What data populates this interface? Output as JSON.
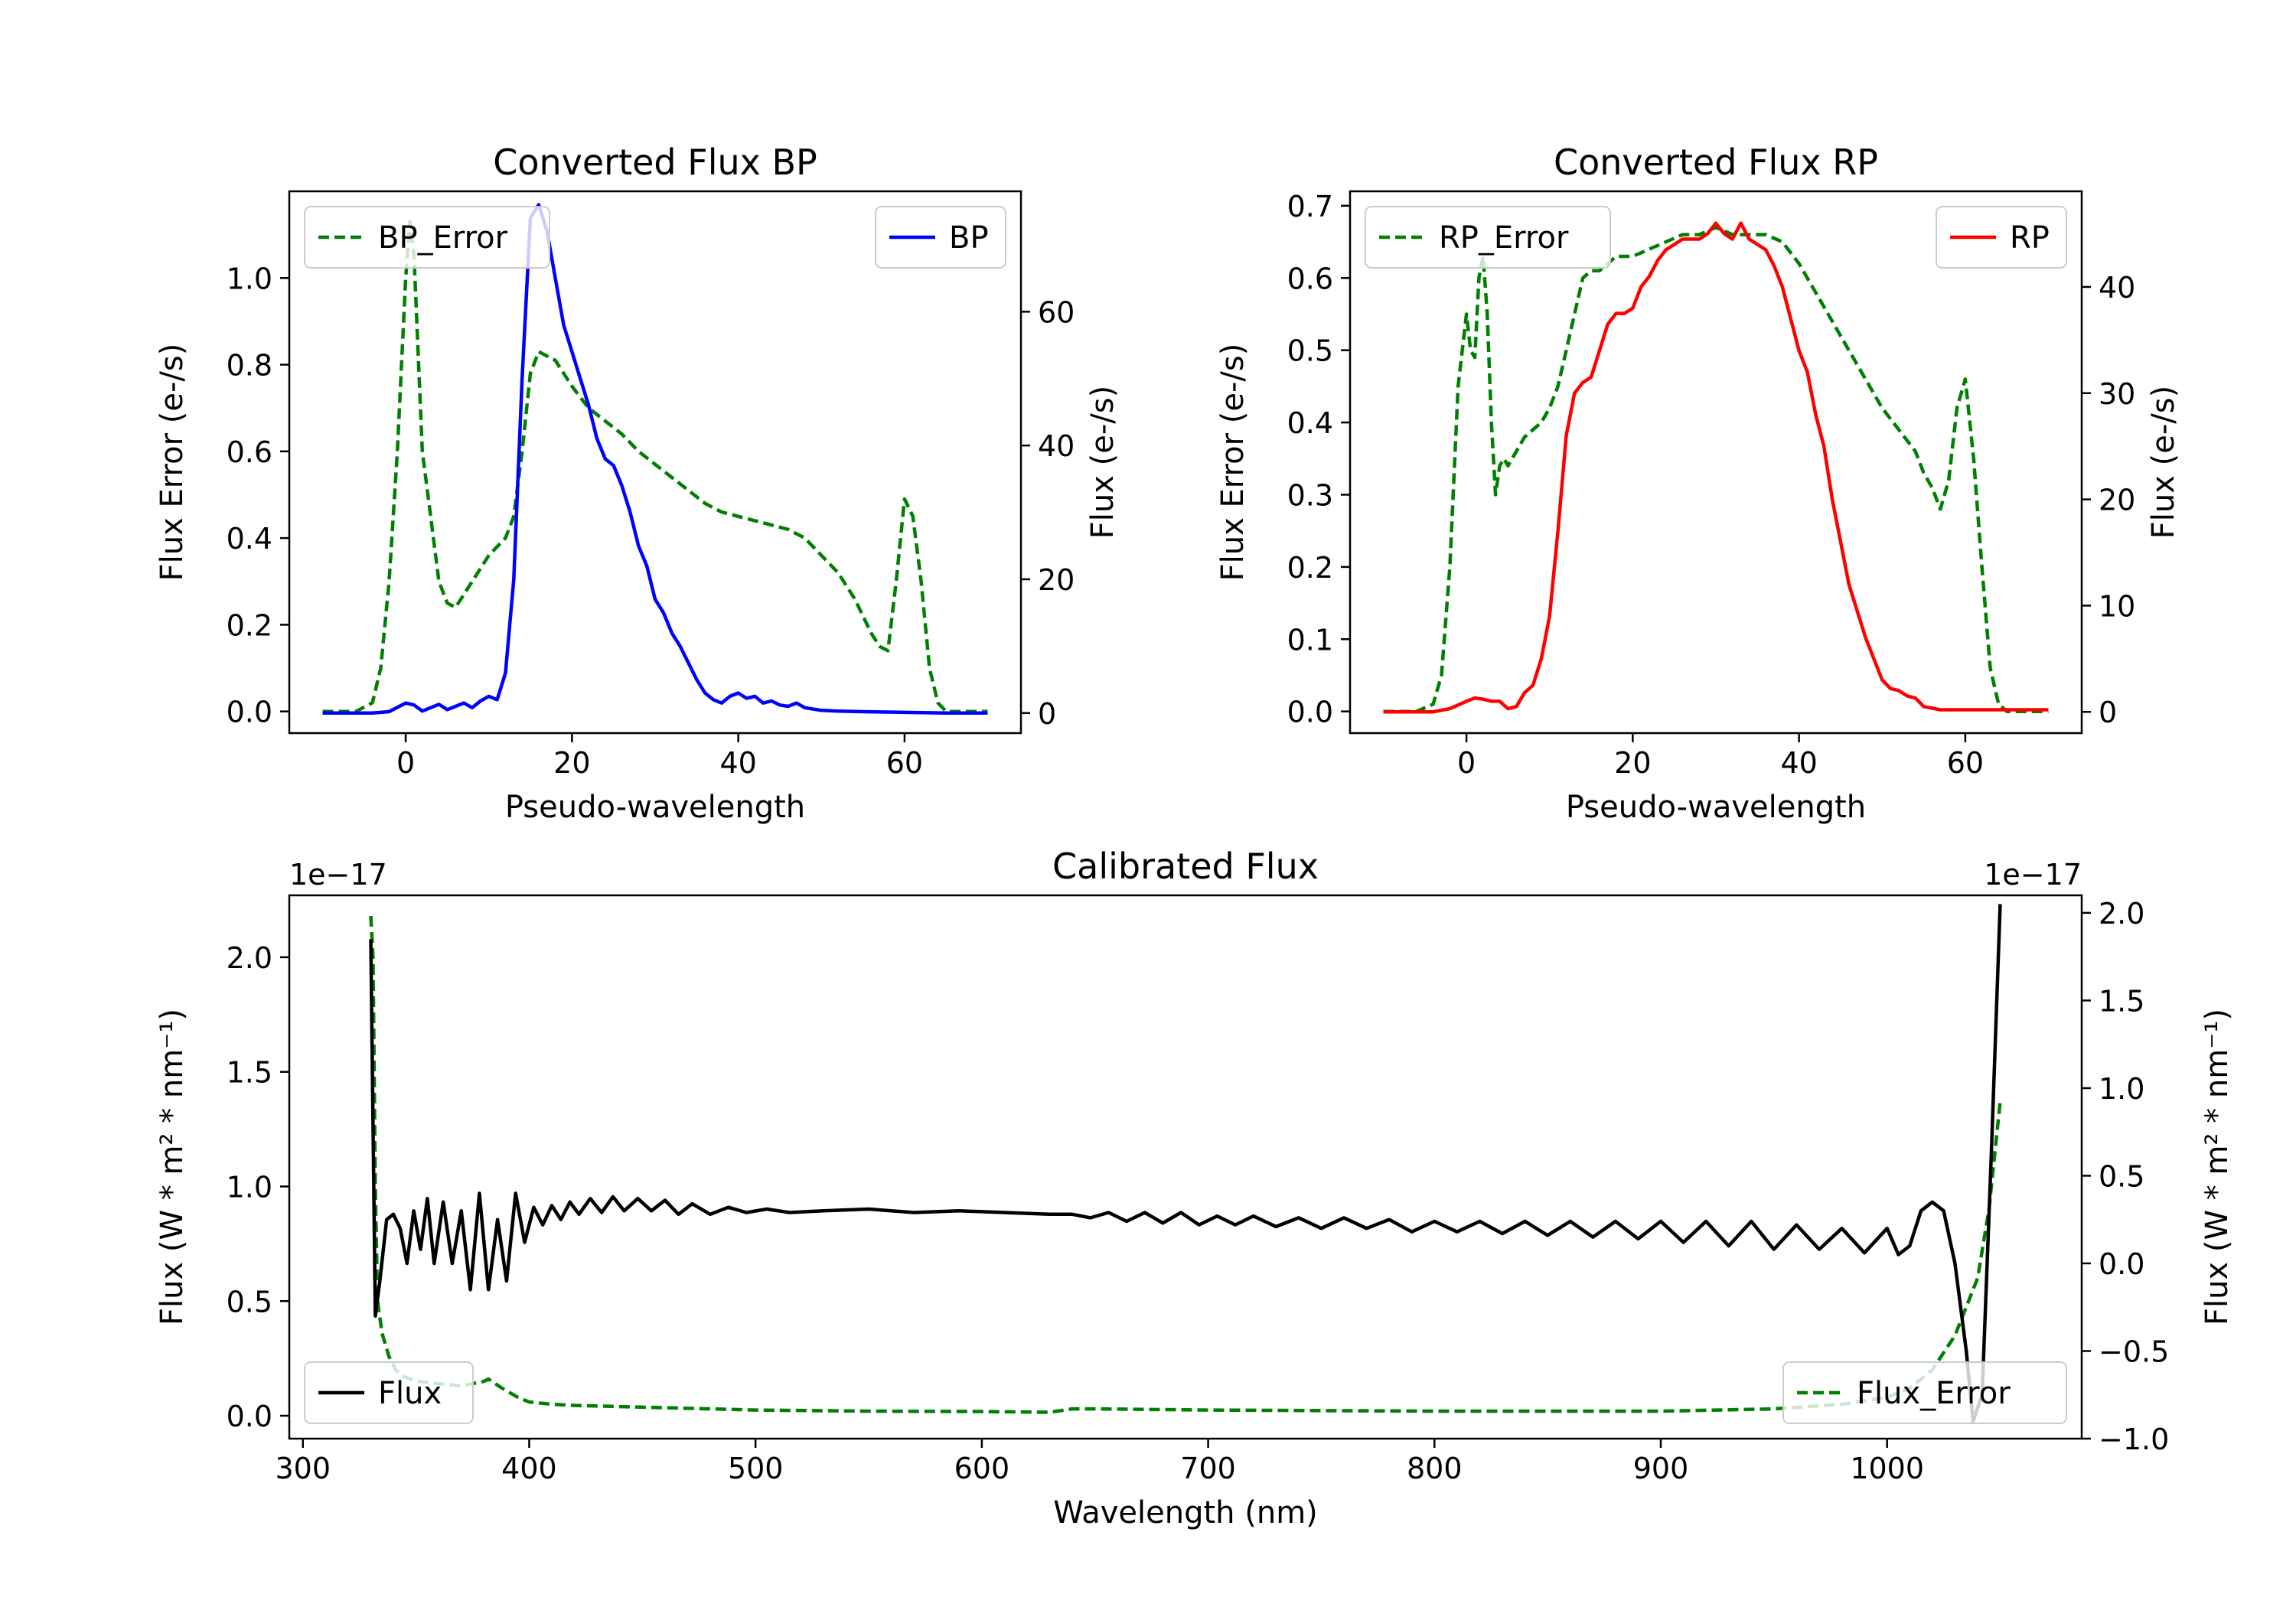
{
  "chart_data": [
    {
      "id": "bp",
      "type": "line",
      "title": "Converted Flux BP",
      "xlabel": "Pseudo-wavelength",
      "xlim": [
        -14,
        74
      ],
      "xticks": [
        0,
        20,
        40,
        60
      ],
      "left_axis": {
        "label": "Flux Error (e-/s)",
        "color": "#008000",
        "ylim": [
          -0.05,
          1.2
        ],
        "ticks": [
          0.0,
          0.2,
          0.4,
          0.6,
          0.8,
          1.0
        ],
        "tick_labels": [
          "0.0",
          "0.2",
          "0.4",
          "0.6",
          "0.8",
          "1.0"
        ]
      },
      "right_axis": {
        "label": "Flux (e-/s)",
        "color": "#0000ff",
        "ylim": [
          -3,
          78
        ],
        "ticks": [
          0,
          20,
          40,
          60
        ],
        "tick_labels": [
          "0",
          "20",
          "40",
          "60"
        ]
      },
      "series": [
        {
          "name": "BP_Error",
          "axis": "left",
          "style": "dashed",
          "color": "#008000",
          "x": [
            -10,
            -6,
            -4,
            -3,
            -2,
            -1,
            0,
            0.5,
            1,
            2,
            3,
            4,
            5,
            6,
            8,
            10,
            12,
            13,
            14,
            15,
            16,
            18,
            20,
            22,
            24,
            26,
            28,
            30,
            32,
            34,
            36,
            38,
            40,
            42,
            44,
            46,
            48,
            50,
            52,
            54,
            56,
            57,
            58,
            59,
            60,
            61,
            62,
            63,
            64,
            65,
            66,
            70
          ],
          "y": [
            0.0,
            0.0,
            0.02,
            0.1,
            0.3,
            0.6,
            1.0,
            1.13,
            1.05,
            0.6,
            0.45,
            0.3,
            0.25,
            0.24,
            0.3,
            0.36,
            0.4,
            0.45,
            0.6,
            0.78,
            0.83,
            0.81,
            0.75,
            0.7,
            0.67,
            0.64,
            0.6,
            0.57,
            0.54,
            0.51,
            0.48,
            0.46,
            0.45,
            0.44,
            0.43,
            0.42,
            0.4,
            0.36,
            0.32,
            0.26,
            0.18,
            0.15,
            0.14,
            0.3,
            0.49,
            0.45,
            0.3,
            0.1,
            0.02,
            0.0,
            0.0,
            0.0
          ]
        },
        {
          "name": "BP",
          "axis": "right",
          "style": "solid",
          "color": "#0000ff",
          "x": [
            -10,
            -6,
            -4,
            -2,
            0,
            1,
            2,
            3,
            4,
            5,
            6,
            7,
            8,
            9,
            10,
            11,
            12,
            13,
            14,
            15,
            16,
            17,
            18,
            19,
            20,
            21,
            22,
            23,
            24,
            25,
            26,
            27,
            28,
            29,
            30,
            31,
            32,
            33,
            34,
            35,
            36,
            37,
            38,
            39,
            40,
            41,
            42,
            43,
            44,
            45,
            46,
            47,
            48,
            50,
            52,
            55,
            60,
            65,
            70
          ],
          "y": [
            0,
            0,
            0,
            0.2,
            1.5,
            1.2,
            0.3,
            0.8,
            1.3,
            0.5,
            1.0,
            1.5,
            0.8,
            1.8,
            2.5,
            2.0,
            6,
            20,
            50,
            74,
            76,
            72,
            65,
            58,
            54,
            50,
            46,
            41,
            38,
            37,
            34,
            30,
            25,
            22,
            17,
            15,
            12,
            10,
            7.5,
            5,
            3,
            2,
            1.5,
            2.5,
            3,
            2.2,
            2.5,
            1.5,
            1.8,
            1.2,
            1.0,
            1.5,
            0.8,
            0.4,
            0.3,
            0.2,
            0.1,
            0,
            0
          ]
        }
      ],
      "legend": [
        {
          "label": "BP_Error",
          "position": "upper-left"
        },
        {
          "label": "BP",
          "position": "upper-right"
        }
      ]
    },
    {
      "id": "rp",
      "type": "line",
      "title": "Converted Flux RP",
      "xlabel": "Pseudo-wavelength",
      "xlim": [
        -14,
        74
      ],
      "xticks": [
        0,
        20,
        40,
        60
      ],
      "left_axis": {
        "label": "Flux Error (e-/s)",
        "color": "#008000",
        "ylim": [
          -0.03,
          0.72
        ],
        "ticks": [
          0.0,
          0.1,
          0.2,
          0.3,
          0.4,
          0.5,
          0.6,
          0.7
        ],
        "tick_labels": [
          "0.0",
          "0.1",
          "0.2",
          "0.3",
          "0.4",
          "0.5",
          "0.6",
          "0.7"
        ]
      },
      "right_axis": {
        "label": "Flux (e-/s)",
        "color": "#ff0000",
        "ylim": [
          -2,
          49
        ],
        "ticks": [
          0,
          10,
          20,
          30,
          40
        ],
        "tick_labels": [
          "0",
          "10",
          "20",
          "30",
          "40"
        ]
      },
      "series": [
        {
          "name": "RP_Error",
          "axis": "left",
          "style": "dashed",
          "color": "#008000",
          "x": [
            -10,
            -6,
            -4,
            -3,
            -2,
            -1,
            0,
            0.5,
            1,
            1.5,
            2,
            2.5,
            3,
            3.5,
            4,
            4.5,
            5,
            6,
            7,
            8,
            9,
            10,
            11,
            12,
            13,
            14,
            15,
            16,
            17,
            18,
            20,
            22,
            24,
            26,
            28,
            30,
            32,
            34,
            36,
            38,
            40,
            42,
            44,
            46,
            48,
            50,
            52,
            54,
            55,
            56,
            57,
            58,
            59,
            60,
            61,
            62,
            63,
            64,
            65,
            70
          ],
          "y": [
            0.0,
            0.0,
            0.01,
            0.05,
            0.2,
            0.45,
            0.55,
            0.5,
            0.49,
            0.6,
            0.63,
            0.55,
            0.4,
            0.3,
            0.34,
            0.35,
            0.34,
            0.36,
            0.38,
            0.39,
            0.4,
            0.42,
            0.45,
            0.5,
            0.55,
            0.6,
            0.61,
            0.61,
            0.62,
            0.63,
            0.63,
            0.64,
            0.65,
            0.66,
            0.66,
            0.67,
            0.66,
            0.66,
            0.66,
            0.65,
            0.62,
            0.58,
            0.54,
            0.5,
            0.46,
            0.42,
            0.39,
            0.36,
            0.33,
            0.31,
            0.28,
            0.32,
            0.42,
            0.46,
            0.35,
            0.2,
            0.06,
            0.01,
            0.0,
            0.0
          ]
        },
        {
          "name": "RP",
          "axis": "right",
          "style": "solid",
          "color": "#ff0000",
          "x": [
            -10,
            -6,
            -4,
            -2,
            0,
            1,
            2,
            3,
            4,
            5,
            6,
            7,
            8,
            9,
            10,
            11,
            12,
            13,
            14,
            15,
            16,
            17,
            18,
            19,
            20,
            21,
            22,
            23,
            24,
            25,
            26,
            27,
            28,
            29,
            30,
            31,
            32,
            33,
            34,
            35,
            36,
            37,
            38,
            39,
            40,
            41,
            42,
            43,
            44,
            45,
            46,
            47,
            48,
            49,
            50,
            51,
            52,
            53,
            54,
            55,
            57,
            60,
            65,
            70
          ],
          "y": [
            0,
            0,
            0,
            0.3,
            1.0,
            1.3,
            1.2,
            1.0,
            1.0,
            0.3,
            0.5,
            1.8,
            2.5,
            5,
            9,
            17,
            26,
            30,
            31,
            31.5,
            34,
            36.5,
            37.5,
            37.5,
            38,
            40,
            41,
            42.5,
            43.5,
            44,
            44.5,
            44.5,
            44.5,
            45,
            46,
            45,
            44.5,
            46,
            44.5,
            44,
            43.5,
            42,
            40,
            37,
            34,
            32,
            28,
            25,
            20,
            16,
            12,
            9.5,
            7,
            5,
            3,
            2.2,
            2.0,
            1.5,
            1.3,
            0.5,
            0.2,
            0.2,
            0.2,
            0.2
          ]
        }
      ],
      "legend": [
        {
          "label": "RP_Error",
          "position": "upper-left"
        },
        {
          "label": "RP",
          "position": "upper-right"
        }
      ]
    },
    {
      "id": "cal",
      "type": "line",
      "title": "Calibrated Flux",
      "xlabel": "Wavelength (nm)",
      "xlim": [
        294,
        1086
      ],
      "xticks": [
        300,
        400,
        500,
        600,
        700,
        800,
        900,
        1000
      ],
      "left_axis": {
        "label": "Flux (W * m² * nm⁻¹)",
        "color": "#008000",
        "offset_text": "1e−17",
        "ylim": [
          -0.1,
          2.27
        ],
        "ticks": [
          0.0,
          0.5,
          1.0,
          1.5,
          2.0
        ],
        "tick_labels": [
          "0.0",
          "0.5",
          "1.0",
          "1.5",
          "2.0"
        ]
      },
      "right_axis": {
        "label": "Flux (W * m² * nm⁻¹)",
        "color": "#000000",
        "offset_text": "1e−17",
        "ylim": [
          -1.0,
          2.1
        ],
        "ticks": [
          -1.0,
          -0.5,
          0.0,
          0.5,
          1.0,
          1.5,
          2.0
        ],
        "tick_labels": [
          "−1.0",
          "−0.5",
          "0.0",
          "0.5",
          "1.0",
          "1.5",
          "2.0"
        ]
      },
      "series": [
        {
          "name": "Flux_Error",
          "axis": "left",
          "style": "dashed",
          "color": "#008000",
          "x": [
            330,
            331,
            332,
            333,
            335,
            338,
            341,
            345,
            350,
            360,
            370,
            380,
            382,
            388,
            395,
            400,
            410,
            420,
            440,
            460,
            480,
            500,
            550,
            600,
            630,
            640,
            650,
            700,
            800,
            900,
            950,
            980,
            1000,
            1010,
            1020,
            1030,
            1040,
            1045,
            1050
          ],
          "y": [
            2.18,
            2.0,
            1.0,
            0.5,
            0.36,
            0.26,
            0.2,
            0.17,
            0.15,
            0.14,
            0.13,
            0.15,
            0.16,
            0.12,
            0.08,
            0.06,
            0.05,
            0.045,
            0.04,
            0.035,
            0.03,
            0.025,
            0.02,
            0.018,
            0.015,
            0.03,
            0.03,
            0.025,
            0.02,
            0.02,
            0.03,
            0.05,
            0.08,
            0.12,
            0.2,
            0.35,
            0.6,
            0.9,
            1.37
          ]
        },
        {
          "name": "Flux",
          "axis": "right",
          "style": "solid",
          "color": "#000000",
          "x": [
            330,
            332,
            334,
            337,
            340,
            343,
            346,
            349,
            352,
            355,
            358,
            362,
            366,
            370,
            374,
            378,
            382,
            386,
            390,
            394,
            398,
            402,
            406,
            410,
            414,
            418,
            422,
            427,
            432,
            437,
            442,
            448,
            454,
            460,
            466,
            472,
            480,
            488,
            496,
            505,
            515,
            530,
            550,
            570,
            590,
            610,
            630,
            640,
            648,
            656,
            664,
            672,
            680,
            688,
            696,
            704,
            712,
            720,
            730,
            740,
            750,
            760,
            770,
            780,
            790,
            800,
            810,
            820,
            830,
            840,
            850,
            860,
            870,
            880,
            890,
            900,
            910,
            920,
            930,
            940,
            950,
            960,
            970,
            980,
            990,
            1000,
            1005,
            1010,
            1015,
            1020,
            1025,
            1030,
            1035,
            1038,
            1042,
            1046,
            1050
          ],
          "y": [
            1.85,
            -0.3,
            -0.1,
            0.25,
            0.28,
            0.2,
            0.0,
            0.3,
            0.08,
            0.37,
            0.0,
            0.35,
            0.0,
            0.3,
            -0.15,
            0.4,
            -0.15,
            0.25,
            -0.1,
            0.4,
            0.12,
            0.32,
            0.22,
            0.33,
            0.25,
            0.35,
            0.28,
            0.37,
            0.29,
            0.38,
            0.3,
            0.37,
            0.3,
            0.36,
            0.28,
            0.34,
            0.28,
            0.32,
            0.29,
            0.31,
            0.29,
            0.3,
            0.31,
            0.29,
            0.3,
            0.29,
            0.28,
            0.28,
            0.26,
            0.29,
            0.24,
            0.29,
            0.23,
            0.29,
            0.22,
            0.27,
            0.22,
            0.27,
            0.21,
            0.26,
            0.2,
            0.26,
            0.2,
            0.25,
            0.18,
            0.24,
            0.18,
            0.24,
            0.17,
            0.24,
            0.16,
            0.24,
            0.15,
            0.24,
            0.14,
            0.24,
            0.12,
            0.24,
            0.1,
            0.24,
            0.08,
            0.22,
            0.08,
            0.2,
            0.06,
            0.2,
            0.05,
            0.1,
            0.3,
            0.35,
            0.3,
            0.0,
            -0.5,
            -0.9,
            -0.75,
            0.6,
            2.05
          ]
        }
      ],
      "legend": [
        {
          "label": "Flux",
          "position": "lower-left"
        },
        {
          "label": "Flux_Error",
          "position": "lower-right"
        }
      ]
    }
  ]
}
